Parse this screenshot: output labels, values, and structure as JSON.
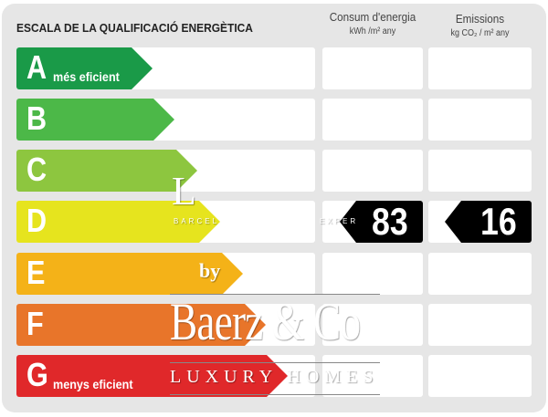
{
  "header": {
    "title": "ESCALA DE LA QUALIFICACIÓ ENERGÈTICA",
    "consum_label": "Consum d'energia",
    "consum_unit": "kWh /m² any",
    "emissions_label": "Emissions",
    "emissions_unit": "kg CO₂ / m² any"
  },
  "ratings": [
    {
      "letter": "A",
      "label": "més eficient",
      "color": "#1a9a48"
    },
    {
      "letter": "B",
      "label": "",
      "color": "#4cb848"
    },
    {
      "letter": "C",
      "label": "",
      "color": "#8dc63f"
    },
    {
      "letter": "D",
      "label": "",
      "color": "#e6e41e"
    },
    {
      "letter": "E",
      "label": "",
      "color": "#f4b218"
    },
    {
      "letter": "F",
      "label": "",
      "color": "#e8752a"
    },
    {
      "letter": "G",
      "label": "menys eficient",
      "color": "#e0282a"
    }
  ],
  "result": {
    "rating": "D",
    "consum": "83",
    "emissions": "16"
  },
  "watermark": {
    "l": "L",
    "city": "BARCEL",
    "exper": "EXPER",
    "by": "by",
    "brand": "Baerz & Co",
    "tagline": "LUXURY HOMES"
  }
}
